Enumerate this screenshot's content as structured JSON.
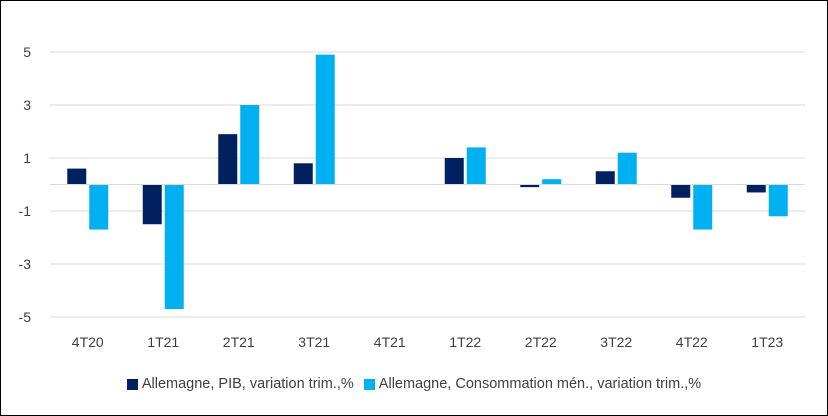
{
  "chart_data": {
    "type": "bar",
    "title": "",
    "xlabel": "",
    "ylabel": "",
    "categories": [
      "4T20",
      "1T21",
      "2T21",
      "3T21",
      "4T21",
      "1T22",
      "2T22",
      "3T22",
      "4T22",
      "1T23"
    ],
    "series": [
      {
        "name": "Allemagne, PIB, variation trim.,%",
        "color": "#002060",
        "values": [
          0.6,
          -1.5,
          1.9,
          0.8,
          0.0,
          1.0,
          -0.1,
          0.5,
          -0.5,
          -0.3
        ]
      },
      {
        "name": "Allemagne, Consommation mén., variation trim.,%",
        "color": "#00B0F0",
        "values": [
          -1.7,
          -4.7,
          3.0,
          4.9,
          0.0,
          1.4,
          0.2,
          1.2,
          -1.7,
          -1.2
        ]
      }
    ],
    "ylim": [
      -5,
      5
    ],
    "yticks": [
      "5",
      "3",
      "1",
      "-1",
      "-3",
      "-5"
    ],
    "ytick_values": [
      5,
      3,
      1,
      -1,
      -3,
      -5
    ],
    "gridlines": true,
    "legend_position": "bottom"
  }
}
